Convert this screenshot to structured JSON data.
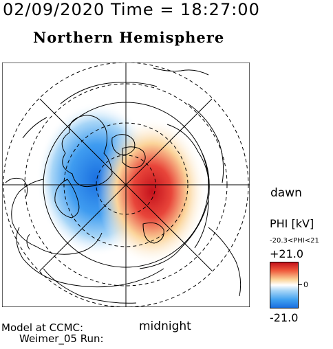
{
  "header": {
    "timestamp": "02/09/2020 Time = 18:27:00",
    "title": "Northern Hemisphere"
  },
  "map": {
    "orientation_labels": {
      "dawn": "dawn",
      "midnight": "midnight"
    },
    "features": [
      "polar-grid",
      "latitude-circles",
      "meridian-lines",
      "coastlines"
    ],
    "potential_pattern": {
      "negative_cell": "dusk side (left)",
      "positive_cell": "dawn side (right)"
    }
  },
  "colorbar": {
    "title": "PHI [kV]",
    "range_text": "-20.3<PHI<21",
    "max_label": "+21.0",
    "zero_label": "0",
    "min_label": "-21.0",
    "colors": {
      "max": "#c4121c",
      "mid": "#ffffff",
      "min": "#1a6fe0"
    }
  },
  "footer": {
    "line1": "Model at CCMC:",
    "line2": "Weimer_05 Run:"
  }
}
